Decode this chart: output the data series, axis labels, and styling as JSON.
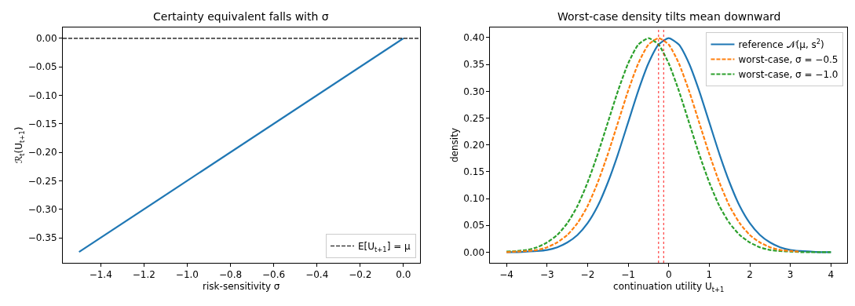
{
  "chart_data": [
    {
      "type": "line",
      "title": "Certainty equivalent falls with σ",
      "xlabel": "risk-sensitivity σ",
      "ylabel": "ℛ$_{t}$(U$_{t+1}$)",
      "xlim": [
        -1.575,
        0.075
      ],
      "ylim": [
        -0.394,
        0.019
      ],
      "xticks": [
        {
          "value": -1.4,
          "label": "−1.4"
        },
        {
          "value": -1.2,
          "label": "−1.2"
        },
        {
          "value": -1.0,
          "label": "−1.0"
        },
        {
          "value": -0.8,
          "label": "−0.8"
        },
        {
          "value": -0.6,
          "label": "−0.6"
        },
        {
          "value": -0.4,
          "label": "−0.4"
        },
        {
          "value": -0.2,
          "label": "−0.2"
        },
        {
          "value": 0,
          "label": "0.0"
        }
      ],
      "yticks": [
        {
          "value": -0.35,
          "label": "−0.35"
        },
        {
          "value": -0.3,
          "label": "−0.30"
        },
        {
          "value": -0.25,
          "label": "−0.25"
        },
        {
          "value": -0.2,
          "label": "−0.20"
        },
        {
          "value": -0.15,
          "label": "−0.15"
        },
        {
          "value": -0.1,
          "label": "−0.10"
        },
        {
          "value": -0.05,
          "label": "−0.05"
        },
        {
          "value": 0,
          "label": "0.00"
        }
      ],
      "legend": "bottom right",
      "series": [
        {
          "color": "#1f77b4",
          "line_style": "solid",
          "x": [
            -1.5,
            0
          ],
          "values": [
            -0.375,
            0
          ]
        }
      ],
      "ref_lines": [
        {
          "axis": "y",
          "value": 0,
          "label": "E[U$_{t+1}$] = μ",
          "color": "#000000",
          "line_style": "dashed"
        }
      ]
    },
    {
      "type": "line",
      "title": "Worst-case density tilts mean downward",
      "xlabel": "continuation utility U$_{t+1}$",
      "ylabel": "density",
      "xlim": [
        -4.4,
        4.4
      ],
      "ylim": [
        -0.02,
        0.419
      ],
      "xticks": [
        {
          "value": -4,
          "label": "−4"
        },
        {
          "value": -3,
          "label": "−3"
        },
        {
          "value": -2,
          "label": "−2"
        },
        {
          "value": -1,
          "label": "−1"
        },
        0,
        1,
        2,
        3,
        4
      ],
      "yticks": [
        {
          "value": 0,
          "label": "0.00"
        },
        {
          "value": 0.05,
          "label": "0.05"
        },
        {
          "value": 0.1,
          "label": "0.10"
        },
        {
          "value": 0.15,
          "label": "0.15"
        },
        {
          "value": 0.2,
          "label": "0.20"
        },
        {
          "value": 0.25,
          "label": "0.25"
        },
        {
          "value": 0.3,
          "label": "0.30"
        },
        {
          "value": 0.35,
          "label": "0.35"
        },
        {
          "value": 0.4,
          "label": "0.40"
        }
      ],
      "legend": "top right",
      "x": [
        -4,
        -3.75,
        -3.5,
        -3.25,
        -3,
        -2.75,
        -2.5,
        -2.25,
        -2,
        -1.75,
        -1.5,
        -1.25,
        -1,
        -0.75,
        -0.5,
        -0.25,
        0,
        0.25,
        0.5,
        0.75,
        1,
        1.25,
        1.5,
        1.75,
        2,
        2.25,
        2.5,
        2.75,
        3,
        3.25,
        3.5,
        3.75,
        4
      ],
      "series": [
        {
          "name": "reference 𝒩(μ, s$^{2}$)",
          "color": "#1f77b4",
          "line_style": "solid",
          "values": [
            0.0,
            0.0,
            0.001,
            0.002,
            0.004,
            0.009,
            0.018,
            0.032,
            0.054,
            0.086,
            0.13,
            0.183,
            0.242,
            0.301,
            0.352,
            0.387,
            0.399,
            0.387,
            0.352,
            0.301,
            0.242,
            0.183,
            0.13,
            0.086,
            0.054,
            0.032,
            0.018,
            0.009,
            0.004,
            0.002,
            0.001,
            0.0,
            0.0
          ]
        },
        {
          "name": "worst-case, σ = −0.5",
          "color": "#ff7f0e",
          "line_style": "dashed",
          "values": [
            0.0,
            0.001,
            0.002,
            0.004,
            0.009,
            0.018,
            0.032,
            0.054,
            0.086,
            0.13,
            0.183,
            0.242,
            0.301,
            0.352,
            0.387,
            0.399,
            0.387,
            0.352,
            0.301,
            0.242,
            0.183,
            0.13,
            0.086,
            0.054,
            0.032,
            0.018,
            0.009,
            0.004,
            0.002,
            0.001,
            null,
            null,
            null
          ]
        },
        {
          "name": "worst-case, σ = −1.0",
          "color": "#2ca02c",
          "line_style": "dashed",
          "values": [
            0.001,
            0.002,
            0.004,
            0.009,
            0.018,
            0.032,
            0.054,
            0.086,
            0.13,
            0.183,
            0.242,
            0.301,
            0.352,
            0.387,
            0.399,
            0.387,
            0.352,
            0.301,
            0.242,
            0.183,
            0.13,
            0.086,
            0.054,
            0.032,
            0.018,
            0.009,
            0.004,
            0.002,
            0.001,
            0.0,
            0.0,
            0.0,
            0.0
          ]
        }
      ],
      "ref_lines": [
        {
          "axis": "x",
          "value": -0.25,
          "color": "#ff0000",
          "line_style": "dotted"
        },
        {
          "axis": "x",
          "value": -0.125,
          "color": "#ff0000",
          "line_style": "dotted"
        }
      ]
    }
  ]
}
